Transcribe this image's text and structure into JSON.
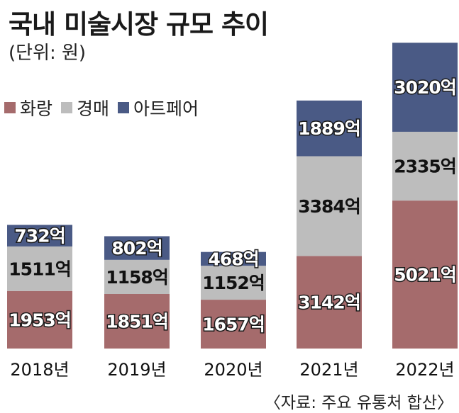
{
  "title": "국내 미술시장 규모 추이",
  "unit": "(단위: 원)",
  "source": "〈자료: 주요 유통처 합산〉",
  "colors": {
    "gallery": "#a56b6c",
    "auction": "#bdbdbd",
    "artfair": "#4a5a85"
  },
  "chart_data": {
    "type": "bar",
    "stacked": true,
    "categories": [
      "2018년",
      "2019년",
      "2020년",
      "2021년",
      "2022년"
    ],
    "series": [
      {
        "name": "화랑",
        "values": [
          1953,
          1851,
          1657,
          3142,
          5021
        ],
        "labels": [
          "1953억",
          "1851억",
          "1657억",
          "3142억",
          "5021억"
        ]
      },
      {
        "name": "경매",
        "values": [
          1511,
          1158,
          1152,
          3384,
          2335
        ],
        "labels": [
          "1511억",
          "1158억",
          "1152억",
          "3384억",
          "2335억"
        ]
      },
      {
        "name": "아트페어",
        "values": [
          732,
          802,
          468,
          1889,
          3020
        ],
        "labels": [
          "732억",
          "802억",
          "468억",
          "1889억",
          "3020억"
        ]
      }
    ],
    "legend_position": "top-left",
    "grid": false
  }
}
